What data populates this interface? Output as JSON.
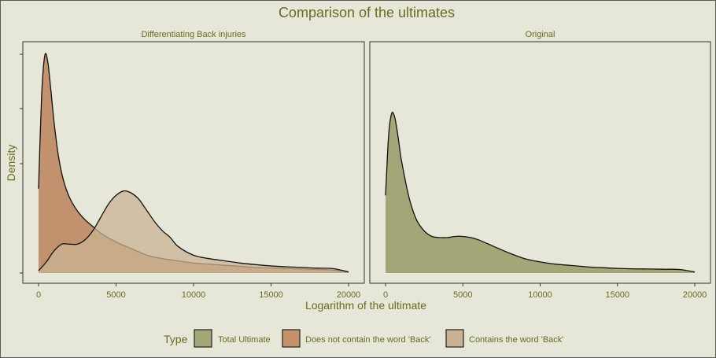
{
  "chart_data": {
    "type": "area",
    "title": "Comparison of the ultimates",
    "xlabel": "Logarithm of the ultimate",
    "ylabel": "Density",
    "xlim": [
      0,
      20000
    ],
    "x_ticks": [
      "0",
      "5000",
      "10000",
      "15000",
      "20000"
    ],
    "grid": false,
    "legend": {
      "title": "Type",
      "placement": "bottom",
      "entries": [
        {
          "label": "Total Ultimate",
          "color": "#a3a679"
        },
        {
          "label": "Does not contain the word 'Back'",
          "color": "#c4926a"
        },
        {
          "label": "Contains the word 'Back'",
          "color": "#c9b393"
        }
      ]
    },
    "panels": [
      {
        "strip": "Differentiating Back injuries",
        "series": [
          {
            "name": "Does not contain the word 'Back'",
            "color": "#b06e3e",
            "opacity": 0.7,
            "x": [
              0,
              200,
              400,
              600,
              800,
              1000,
              1300,
              1600,
              2000,
              2500,
              3000,
              3500,
              4000,
              5000,
              6000,
              7000,
              8000,
              9000,
              10000,
              11000,
              12000,
              13000,
              14000,
              15000,
              16000,
              17000,
              18000,
              19000,
              20000
            ],
            "y": [
              0.38,
              0.8,
              0.98,
              0.95,
              0.82,
              0.68,
              0.52,
              0.42,
              0.34,
              0.28,
              0.24,
              0.21,
              0.18,
              0.14,
              0.11,
              0.08,
              0.065,
              0.055,
              0.045,
              0.04,
              0.035,
              0.03,
              0.025,
              0.023,
              0.02,
              0.018,
              0.016,
              0.013,
              0.005
            ]
          },
          {
            "name": "Contains the word 'Back'",
            "color": "#c9b393",
            "opacity": 0.75,
            "x": [
              0,
              500,
              1000,
              1500,
              2000,
              2500,
              3000,
              3500,
              4000,
              4500,
              5000,
              5500,
              6000,
              6500,
              7000,
              7500,
              8000,
              8500,
              9000,
              10000,
              11000,
              12000,
              13000,
              14000,
              15000,
              16000,
              17000,
              18000,
              19000,
              20000
            ],
            "y": [
              0.01,
              0.05,
              0.1,
              0.13,
              0.13,
              0.13,
              0.15,
              0.19,
              0.25,
              0.31,
              0.35,
              0.37,
              0.36,
              0.33,
              0.28,
              0.23,
              0.19,
              0.16,
              0.12,
              0.08,
              0.065,
              0.055,
              0.045,
              0.038,
              0.032,
              0.028,
              0.025,
              0.022,
              0.02,
              0.005
            ]
          }
        ]
      },
      {
        "strip": "Original",
        "series": [
          {
            "name": "Total Ultimate",
            "color": "#9c9f6d",
            "opacity": 0.9,
            "x": [
              0,
              200,
              400,
              600,
              800,
              1000,
              1300,
              1600,
              2000,
              2500,
              3000,
              3500,
              4000,
              4500,
              5000,
              5500,
              6000,
              6500,
              7000,
              8000,
              9000,
              10000,
              11000,
              12000,
              13000,
              14000,
              15000,
              16000,
              17000,
              18000,
              19000,
              20000
            ],
            "y": [
              0.35,
              0.62,
              0.72,
              0.7,
              0.62,
              0.52,
              0.41,
              0.32,
              0.24,
              0.19,
              0.165,
              0.16,
              0.16,
              0.165,
              0.165,
              0.16,
              0.15,
              0.135,
              0.12,
              0.09,
              0.065,
              0.05,
              0.04,
              0.034,
              0.028,
              0.024,
              0.021,
              0.019,
              0.018,
              0.017,
              0.016,
              0.005
            ]
          }
        ]
      }
    ]
  }
}
